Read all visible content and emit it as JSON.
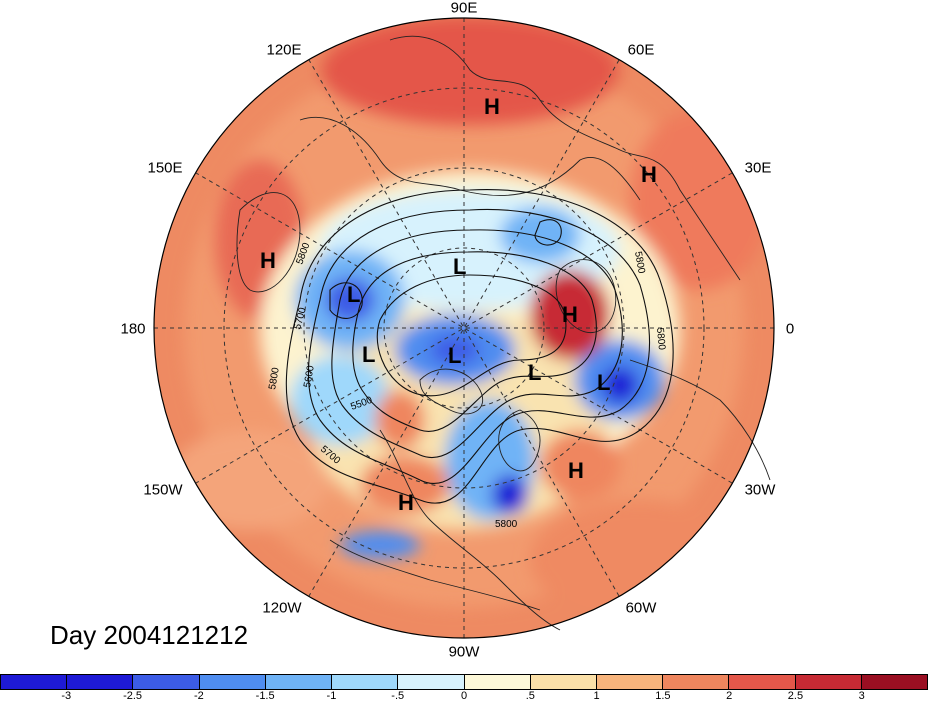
{
  "title": "Day 2004121212",
  "longitude_labels": [
    "90E",
    "60E",
    "30E",
    "0",
    "30W",
    "60W",
    "90W",
    "120W",
    "150W",
    "180",
    "150E",
    "120E"
  ],
  "contour_labels": [
    "5800",
    "5700",
    "5600",
    "5500",
    "5700",
    "5800",
    "5800",
    "5800",
    "5800"
  ],
  "pressure_centers": [
    {
      "label": "H",
      "name": "high-siberia"
    },
    {
      "label": "H",
      "name": "high-europe"
    },
    {
      "label": "H",
      "name": "high-pacific"
    },
    {
      "label": "L",
      "name": "low-arctic"
    },
    {
      "label": "L",
      "name": "low-bering"
    },
    {
      "label": "L",
      "name": "low-canada-west"
    },
    {
      "label": "L",
      "name": "low-canada-arctic"
    },
    {
      "label": "H",
      "name": "high-greenland-sea"
    },
    {
      "label": "L",
      "name": "low-iceland"
    },
    {
      "label": "L",
      "name": "low-north-atlantic"
    },
    {
      "label": "H",
      "name": "high-atlantic"
    },
    {
      "label": "H",
      "name": "high-west-us"
    }
  ],
  "colorbar": {
    "ticks": [
      "-3",
      "-2.5",
      "-2",
      "-1.5",
      "-1",
      "-.5",
      "0",
      ".5",
      "1",
      "1.5",
      "2",
      "2.5",
      "3"
    ],
    "colors": [
      "#1e1ad6",
      "#3c5ce6",
      "#4f8df0",
      "#6fb3f6",
      "#9fd8fb",
      "#d7f2fd",
      "#fdf8d8",
      "#fbe0a8",
      "#f7b47c",
      "#ef865e",
      "#e4574a",
      "#c72a34",
      "#9a0f22"
    ]
  },
  "legend_colors": {
    "strong_positive": "#e4574a",
    "weak_positive": "#f7b47c",
    "neutral": "#fdf8d8",
    "negative": "#6fb3f6",
    "strong_negative": "#3c5ce6"
  }
}
